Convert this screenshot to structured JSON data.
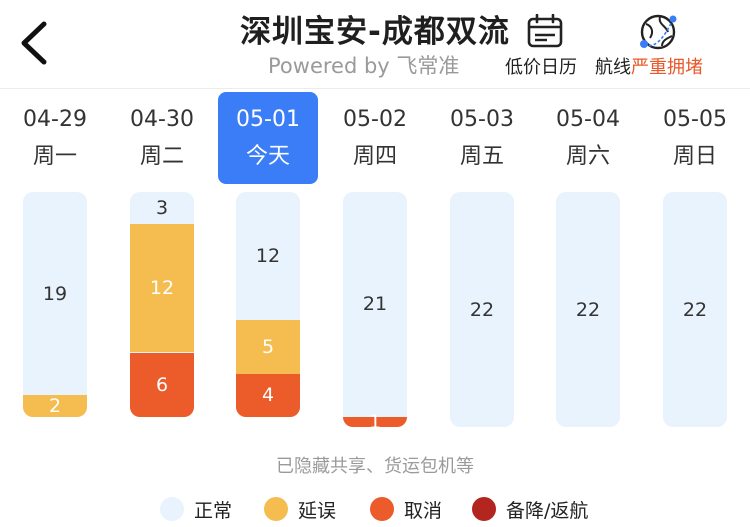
{
  "header": {
    "title": "深圳宝安-成都双流",
    "subtitle": "Powered by 飞常准",
    "calendar_label": "低价日历",
    "route_label": "航线",
    "route_status": "严重拥堵",
    "colors": {
      "route_status": "#e8582a",
      "selected_day": "#3a7df6"
    }
  },
  "days": [
    {
      "date": "04-29",
      "weekday": "周一",
      "normal": 19,
      "delay": 2,
      "cancel": 0,
      "selected": false
    },
    {
      "date": "04-30",
      "weekday": "周二",
      "normal": 3,
      "delay": 12,
      "cancel": 6,
      "selected": false
    },
    {
      "date": "05-01",
      "weekday": "今天",
      "normal": 12,
      "delay": 5,
      "cancel": 4,
      "selected": true
    },
    {
      "date": "05-02",
      "weekday": "周四",
      "normal": 21,
      "delay": 0,
      "cancel": 1,
      "selected": false
    },
    {
      "date": "05-03",
      "weekday": "周五",
      "normal": 22,
      "delay": 0,
      "cancel": 0,
      "selected": false
    },
    {
      "date": "05-04",
      "weekday": "周六",
      "normal": 22,
      "delay": 0,
      "cancel": 0,
      "selected": false
    },
    {
      "date": "05-05",
      "weekday": "周日",
      "normal": 22,
      "delay": 0,
      "cancel": 0,
      "selected": false
    }
  ],
  "note": "已隐藏共享、货运包机等",
  "legend": [
    {
      "label": "正常",
      "color": "#e9f3fd"
    },
    {
      "label": "延误",
      "color": "#f5bd4f"
    },
    {
      "label": "取消",
      "color": "#ec5b2a"
    },
    {
      "label": "备降/返航",
      "color": "#b2261f"
    }
  ]
}
